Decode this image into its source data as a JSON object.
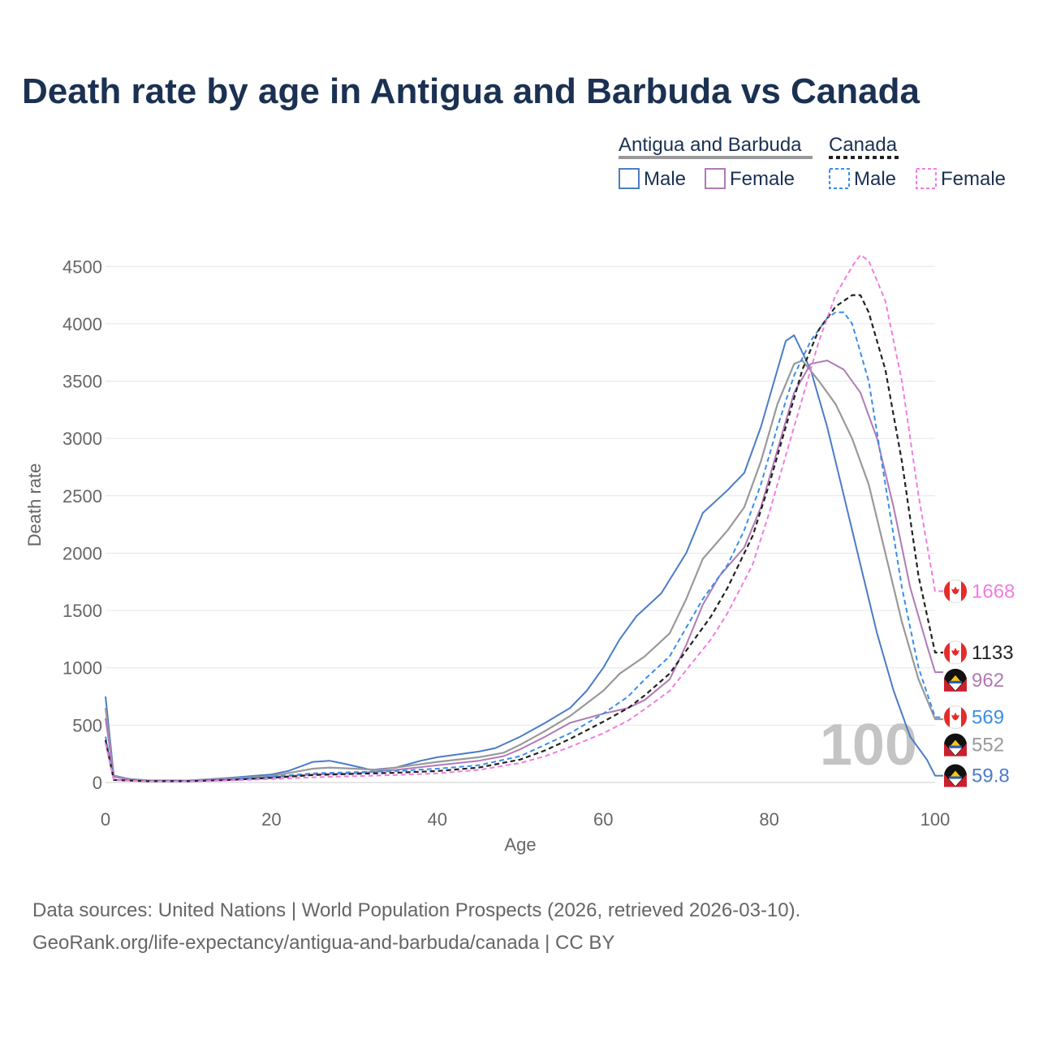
{
  "title": "Death rate by age in Antigua and Barbuda vs Canada",
  "legend": {
    "groups": [
      {
        "name": "Antigua and Barbuda",
        "line_style": "solid",
        "line_color": "#999999",
        "items": [
          {
            "label": "Male",
            "color": "#4a7cc7",
            "dash": "solid"
          },
          {
            "label": "Female",
            "color": "#b07ab5",
            "dash": "solid"
          }
        ]
      },
      {
        "name": "Canada",
        "line_style": "dashed",
        "line_color": "#222222",
        "items": [
          {
            "label": "Male",
            "color": "#3a8ee8",
            "dash": "dashed"
          },
          {
            "label": "Female",
            "color": "#f07de0",
            "dash": "dashed"
          }
        ]
      }
    ]
  },
  "chart_data": {
    "type": "line",
    "title": "Death rate by age in Antigua and Barbuda vs Canada",
    "xlabel": "Age",
    "ylabel": "Death rate",
    "xlim": [
      0,
      100
    ],
    "ylim": [
      0,
      4700
    ],
    "x_ticks": [
      0,
      20,
      40,
      60,
      80,
      100
    ],
    "y_ticks": [
      0,
      500,
      1000,
      1500,
      2000,
      2500,
      3000,
      3500,
      4000,
      4500
    ],
    "grid": true,
    "watermark": "100",
    "series": [
      {
        "name": "Antigua and Barbuda Male",
        "country": "Antigua and Barbuda",
        "sex": "Male",
        "color": "#4a7cc7",
        "dash": "solid",
        "end_label": "59.8",
        "points": [
          [
            0,
            750
          ],
          [
            1,
            60
          ],
          [
            3,
            30
          ],
          [
            5,
            20
          ],
          [
            10,
            18
          ],
          [
            15,
            40
          ],
          [
            20,
            70
          ],
          [
            22,
            100
          ],
          [
            25,
            180
          ],
          [
            27,
            190
          ],
          [
            29,
            160
          ],
          [
            32,
            110
          ],
          [
            35,
            130
          ],
          [
            38,
            190
          ],
          [
            40,
            220
          ],
          [
            45,
            270
          ],
          [
            47,
            300
          ],
          [
            50,
            400
          ],
          [
            53,
            520
          ],
          [
            56,
            650
          ],
          [
            58,
            800
          ],
          [
            60,
            1000
          ],
          [
            62,
            1250
          ],
          [
            64,
            1450
          ],
          [
            67,
            1650
          ],
          [
            70,
            2000
          ],
          [
            72,
            2350
          ],
          [
            75,
            2550
          ],
          [
            77,
            2700
          ],
          [
            79,
            3100
          ],
          [
            81,
            3600
          ],
          [
            82,
            3850
          ],
          [
            83,
            3900
          ],
          [
            85,
            3600
          ],
          [
            87,
            3100
          ],
          [
            89,
            2500
          ],
          [
            91,
            1900
          ],
          [
            93,
            1300
          ],
          [
            95,
            800
          ],
          [
            97,
            400
          ],
          [
            99,
            200
          ],
          [
            100,
            59.8
          ]
        ]
      },
      {
        "name": "Antigua and Barbuda Total",
        "country": "Antigua and Barbuda",
        "sex": "Total",
        "color": "#999999",
        "dash": "solid",
        "end_label": "552",
        "points": [
          [
            0,
            650
          ],
          [
            1,
            55
          ],
          [
            3,
            28
          ],
          [
            5,
            18
          ],
          [
            10,
            17
          ],
          [
            15,
            35
          ],
          [
            20,
            55
          ],
          [
            25,
            120
          ],
          [
            27,
            130
          ],
          [
            30,
            120
          ],
          [
            33,
            110
          ],
          [
            36,
            140
          ],
          [
            40,
            180
          ],
          [
            45,
            220
          ],
          [
            48,
            260
          ],
          [
            50,
            330
          ],
          [
            53,
            450
          ],
          [
            56,
            580
          ],
          [
            60,
            800
          ],
          [
            62,
            950
          ],
          [
            65,
            1100
          ],
          [
            68,
            1300
          ],
          [
            70,
            1600
          ],
          [
            72,
            1950
          ],
          [
            75,
            2200
          ],
          [
            77,
            2400
          ],
          [
            79,
            2800
          ],
          [
            81,
            3300
          ],
          [
            83,
            3650
          ],
          [
            84,
            3680
          ],
          [
            86,
            3500
          ],
          [
            88,
            3300
          ],
          [
            90,
            3000
          ],
          [
            92,
            2600
          ],
          [
            94,
            2000
          ],
          [
            96,
            1400
          ],
          [
            98,
            900
          ],
          [
            100,
            552
          ]
        ]
      },
      {
        "name": "Antigua and Barbuda Female",
        "country": "Antigua and Barbuda",
        "sex": "Female",
        "color": "#b07ab5",
        "dash": "solid",
        "end_label": "962",
        "points": [
          [
            0,
            560
          ],
          [
            1,
            50
          ],
          [
            3,
            25
          ],
          [
            5,
            16
          ],
          [
            10,
            15
          ],
          [
            15,
            30
          ],
          [
            20,
            45
          ],
          [
            25,
            70
          ],
          [
            30,
            80
          ],
          [
            35,
            110
          ],
          [
            40,
            150
          ],
          [
            45,
            190
          ],
          [
            48,
            230
          ],
          [
            50,
            290
          ],
          [
            53,
            400
          ],
          [
            56,
            520
          ],
          [
            60,
            600
          ],
          [
            63,
            650
          ],
          [
            65,
            720
          ],
          [
            68,
            900
          ],
          [
            70,
            1200
          ],
          [
            72,
            1550
          ],
          [
            74,
            1800
          ],
          [
            77,
            2050
          ],
          [
            79,
            2400
          ],
          [
            81,
            2900
          ],
          [
            83,
            3400
          ],
          [
            85,
            3650
          ],
          [
            87,
            3680
          ],
          [
            89,
            3600
          ],
          [
            91,
            3400
          ],
          [
            93,
            3000
          ],
          [
            95,
            2400
          ],
          [
            97,
            1700
          ],
          [
            99,
            1200
          ],
          [
            100,
            962
          ]
        ]
      },
      {
        "name": "Canada Male",
        "country": "Canada",
        "sex": "Male",
        "color": "#3a8ee8",
        "dash": "dashed",
        "end_label": "569",
        "points": [
          [
            0,
            400
          ],
          [
            1,
            25
          ],
          [
            5,
            12
          ],
          [
            10,
            12
          ],
          [
            15,
            25
          ],
          [
            20,
            50
          ],
          [
            25,
            80
          ],
          [
            30,
            90
          ],
          [
            35,
            100
          ],
          [
            40,
            120
          ],
          [
            45,
            150
          ],
          [
            50,
            230
          ],
          [
            53,
            330
          ],
          [
            56,
            430
          ],
          [
            60,
            600
          ],
          [
            63,
            750
          ],
          [
            65,
            900
          ],
          [
            68,
            1100
          ],
          [
            70,
            1350
          ],
          [
            72,
            1600
          ],
          [
            75,
            1900
          ],
          [
            77,
            2200
          ],
          [
            79,
            2600
          ],
          [
            81,
            3100
          ],
          [
            83,
            3550
          ],
          [
            85,
            3850
          ],
          [
            87,
            4050
          ],
          [
            88,
            4100
          ],
          [
            89,
            4100
          ],
          [
            90,
            4000
          ],
          [
            92,
            3500
          ],
          [
            94,
            2600
          ],
          [
            96,
            1700
          ],
          [
            98,
            1000
          ],
          [
            100,
            569
          ]
        ]
      },
      {
        "name": "Canada Total",
        "country": "Canada",
        "sex": "Total",
        "color": "#222222",
        "dash": "dashed",
        "end_label": "1133",
        "points": [
          [
            0,
            370
          ],
          [
            1,
            22
          ],
          [
            5,
            11
          ],
          [
            10,
            11
          ],
          [
            15,
            22
          ],
          [
            20,
            40
          ],
          [
            25,
            65
          ],
          [
            30,
            75
          ],
          [
            35,
            85
          ],
          [
            40,
            100
          ],
          [
            45,
            130
          ],
          [
            50,
            200
          ],
          [
            53,
            280
          ],
          [
            56,
            380
          ],
          [
            60,
            530
          ],
          [
            63,
            650
          ],
          [
            65,
            760
          ],
          [
            68,
            950
          ],
          [
            70,
            1150
          ],
          [
            73,
            1450
          ],
          [
            75,
            1700
          ],
          [
            78,
            2150
          ],
          [
            80,
            2600
          ],
          [
            82,
            3100
          ],
          [
            84,
            3600
          ],
          [
            86,
            3950
          ],
          [
            88,
            4150
          ],
          [
            90,
            4250
          ],
          [
            91,
            4250
          ],
          [
            92,
            4100
          ],
          [
            94,
            3600
          ],
          [
            96,
            2800
          ],
          [
            98,
            1800
          ],
          [
            100,
            1133
          ]
        ]
      },
      {
        "name": "Canada Female",
        "country": "Canada",
        "sex": "Female",
        "color": "#f07de0",
        "dash": "dashed",
        "end_label": "1668",
        "points": [
          [
            0,
            340
          ],
          [
            1,
            20
          ],
          [
            5,
            10
          ],
          [
            10,
            10
          ],
          [
            15,
            18
          ],
          [
            20,
            30
          ],
          [
            25,
            45
          ],
          [
            30,
            55
          ],
          [
            35,
            65
          ],
          [
            40,
            80
          ],
          [
            45,
            110
          ],
          [
            50,
            170
          ],
          [
            53,
            230
          ],
          [
            56,
            310
          ],
          [
            60,
            430
          ],
          [
            63,
            540
          ],
          [
            65,
            640
          ],
          [
            68,
            800
          ],
          [
            70,
            980
          ],
          [
            73,
            1250
          ],
          [
            75,
            1480
          ],
          [
            78,
            1900
          ],
          [
            80,
            2350
          ],
          [
            82,
            2850
          ],
          [
            84,
            3350
          ],
          [
            86,
            3850
          ],
          [
            88,
            4250
          ],
          [
            90,
            4500
          ],
          [
            91,
            4600
          ],
          [
            92,
            4550
          ],
          [
            94,
            4200
          ],
          [
            96,
            3500
          ],
          [
            98,
            2500
          ],
          [
            100,
            1668
          ]
        ]
      }
    ],
    "end_markers": [
      {
        "series": "Canada Female",
        "country": "Canada",
        "value": 1668,
        "label": "1668",
        "color": "#f07de0"
      },
      {
        "series": "Canada Total",
        "country": "Canada",
        "value": 1133,
        "label": "1133",
        "color": "#222222"
      },
      {
        "series": "Antigua and Barbuda Female",
        "country": "Antigua and Barbuda",
        "value": 962,
        "label": "962",
        "color": "#b07ab5"
      },
      {
        "series": "Canada Male",
        "country": "Canada",
        "value": 569,
        "label": "569",
        "color": "#3a8ee8"
      },
      {
        "series": "Antigua and Barbuda Total",
        "country": "Antigua and Barbuda",
        "value": 552,
        "label": "552",
        "color": "#999999"
      },
      {
        "series": "Antigua and Barbuda Male",
        "country": "Antigua and Barbuda",
        "value": 59.8,
        "label": "59.8",
        "color": "#4a7cc7"
      }
    ]
  },
  "footer": {
    "line1": "Data sources: United Nations | World Population Prospects (2026, retrieved 2026-03-10).",
    "line2": "GeoRank.org/life-expectancy/antigua-and-barbuda/canada | CC BY"
  }
}
